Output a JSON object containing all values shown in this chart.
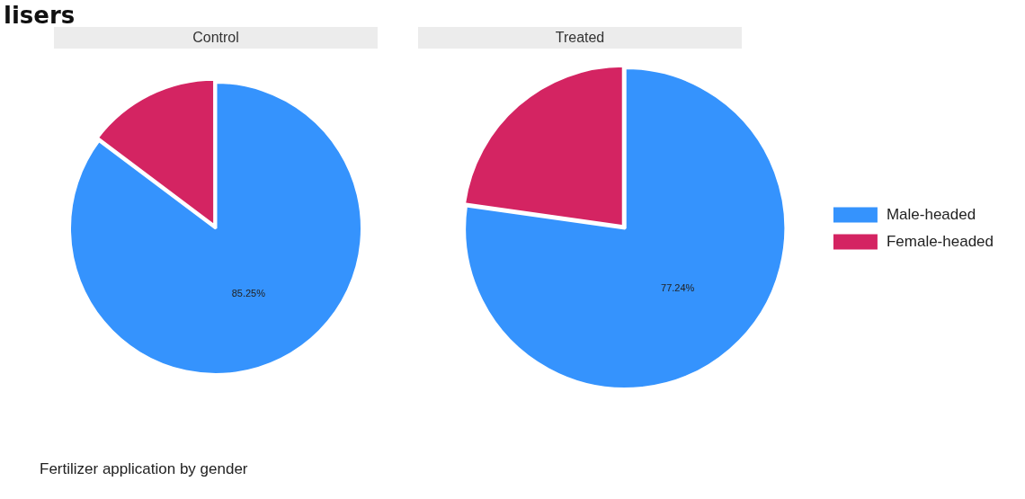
{
  "chart_data": [
    {
      "type": "pie",
      "title": "Control",
      "categories": [
        null,
        null
      ],
      "values": [
        85.25,
        14.75
      ],
      "colors": [
        "#3593fd",
        "#d42462"
      ],
      "value_labels": [
        "85.25%",
        null
      ],
      "legend": false,
      "annotations": [
        "lisers",
        "Fertilizer application by gender"
      ]
    },
    {
      "type": "pie",
      "title": "Treated",
      "categories": [
        "Male-headed",
        "Female-headed"
      ],
      "values": [
        77.24,
        22.76
      ],
      "colors": [
        "#3593fd",
        "#d42462"
      ],
      "value_labels": [
        "77.24%",
        null
      ],
      "legend": "right"
    }
  ]
}
